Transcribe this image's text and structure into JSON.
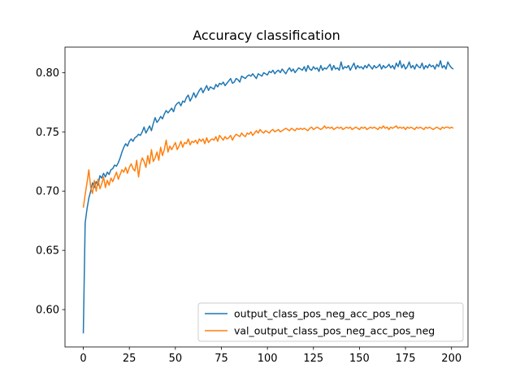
{
  "chart_data": {
    "type": "line",
    "title": "Accuracy classification",
    "xlabel": "",
    "ylabel": "",
    "xlim": [
      -9.95,
      208.95
    ],
    "ylim": [
      0.5685,
      0.8215
    ],
    "xticks": [
      0,
      25,
      50,
      75,
      100,
      125,
      150,
      175,
      200
    ],
    "yticks": [
      0.6,
      0.65,
      0.7,
      0.75,
      0.8
    ],
    "ytick_labels": [
      "0.60",
      "0.65",
      "0.70",
      "0.75",
      "0.80"
    ],
    "grid": false,
    "legend_position": "lower right",
    "series": [
      {
        "name": "output_class_pos_neg_acc_pos_neg",
        "color": "#1f77b4",
        "x_start": 0,
        "x_step": 1,
        "values": [
          0.58,
          0.673,
          0.685,
          0.694,
          0.7,
          0.707,
          0.703,
          0.708,
          0.705,
          0.713,
          0.711,
          0.715,
          0.712,
          0.716,
          0.714,
          0.718,
          0.719,
          0.722,
          0.721,
          0.724,
          0.728,
          0.733,
          0.737,
          0.74,
          0.738,
          0.742,
          0.744,
          0.742,
          0.745,
          0.746,
          0.748,
          0.747,
          0.75,
          0.754,
          0.749,
          0.752,
          0.755,
          0.751,
          0.757,
          0.762,
          0.758,
          0.76,
          0.763,
          0.761,
          0.765,
          0.768,
          0.766,
          0.768,
          0.77,
          0.767,
          0.772,
          0.774,
          0.775,
          0.772,
          0.776,
          0.775,
          0.779,
          0.781,
          0.776,
          0.779,
          0.783,
          0.779,
          0.782,
          0.785,
          0.787,
          0.783,
          0.786,
          0.789,
          0.785,
          0.788,
          0.787,
          0.786,
          0.79,
          0.788,
          0.791,
          0.79,
          0.792,
          0.789,
          0.791,
          0.793,
          0.795,
          0.791,
          0.792,
          0.795,
          0.794,
          0.792,
          0.797,
          0.796,
          0.795,
          0.797,
          0.798,
          0.797,
          0.799,
          0.797,
          0.795,
          0.799,
          0.798,
          0.797,
          0.8,
          0.799,
          0.798,
          0.801,
          0.8,
          0.802,
          0.799,
          0.801,
          0.802,
          0.8,
          0.803,
          0.801,
          0.799,
          0.802,
          0.804,
          0.801,
          0.803,
          0.8,
          0.802,
          0.804,
          0.803,
          0.802,
          0.805,
          0.801,
          0.806,
          0.803,
          0.802,
          0.805,
          0.803,
          0.804,
          0.801,
          0.806,
          0.802,
          0.804,
          0.803,
          0.805,
          0.807,
          0.802,
          0.806,
          0.803,
          0.804,
          0.802,
          0.809,
          0.803,
          0.805,
          0.804,
          0.806,
          0.802,
          0.805,
          0.808,
          0.803,
          0.806,
          0.804,
          0.805,
          0.803,
          0.806,
          0.804,
          0.807,
          0.805,
          0.803,
          0.806,
          0.804,
          0.805,
          0.807,
          0.803,
          0.806,
          0.804,
          0.805,
          0.807,
          0.804,
          0.806,
          0.803,
          0.808,
          0.805,
          0.81,
          0.804,
          0.807,
          0.803,
          0.805,
          0.809,
          0.804,
          0.806,
          0.803,
          0.807,
          0.805,
          0.804,
          0.808,
          0.803,
          0.806,
          0.804,
          0.807,
          0.805,
          0.806,
          0.803,
          0.807,
          0.805,
          0.81,
          0.804,
          0.806,
          0.803,
          0.809,
          0.806,
          0.804,
          0.803
        ],
        "note": ""
      },
      {
        "name": "val_output_class_pos_neg_acc_pos_neg",
        "color": "#ff7f0e",
        "x_start": 0,
        "x_step": 1,
        "values": [
          0.686,
          0.697,
          0.707,
          0.718,
          0.703,
          0.698,
          0.709,
          0.7,
          0.71,
          0.702,
          0.706,
          0.712,
          0.703,
          0.709,
          0.705,
          0.711,
          0.708,
          0.712,
          0.716,
          0.71,
          0.714,
          0.718,
          0.716,
          0.72,
          0.715,
          0.72,
          0.723,
          0.719,
          0.717,
          0.726,
          0.712,
          0.723,
          0.728,
          0.725,
          0.72,
          0.73,
          0.723,
          0.735,
          0.725,
          0.728,
          0.733,
          0.726,
          0.737,
          0.73,
          0.735,
          0.743,
          0.733,
          0.738,
          0.735,
          0.738,
          0.741,
          0.735,
          0.738,
          0.742,
          0.737,
          0.741,
          0.74,
          0.744,
          0.739,
          0.742,
          0.741,
          0.743,
          0.74,
          0.744,
          0.742,
          0.744,
          0.74,
          0.745,
          0.741,
          0.743,
          0.744,
          0.743,
          0.746,
          0.742,
          0.747,
          0.745,
          0.743,
          0.746,
          0.744,
          0.745,
          0.747,
          0.743,
          0.746,
          0.748,
          0.747,
          0.746,
          0.749,
          0.747,
          0.746,
          0.749,
          0.748,
          0.75,
          0.747,
          0.749,
          0.751,
          0.749,
          0.752,
          0.75,
          0.749,
          0.751,
          0.75,
          0.749,
          0.751,
          0.752,
          0.75,
          0.751,
          0.752,
          0.75,
          0.751,
          0.752,
          0.753,
          0.752,
          0.751,
          0.753,
          0.752,
          0.751,
          0.753,
          0.752,
          0.753,
          0.752,
          0.753,
          0.752,
          0.751,
          0.753,
          0.754,
          0.752,
          0.753,
          0.754,
          0.753,
          0.752,
          0.753,
          0.755,
          0.753,
          0.754,
          0.753,
          0.754,
          0.752,
          0.753,
          0.754,
          0.753,
          0.754,
          0.752,
          0.753,
          0.754,
          0.753,
          0.754,
          0.752,
          0.753,
          0.754,
          0.753,
          0.752,
          0.754,
          0.753,
          0.754,
          0.752,
          0.753,
          0.754,
          0.753,
          0.754,
          0.753,
          0.752,
          0.754,
          0.753,
          0.755,
          0.753,
          0.754,
          0.752,
          0.754,
          0.753,
          0.754,
          0.755,
          0.753,
          0.754,
          0.753,
          0.754,
          0.752,
          0.754,
          0.753,
          0.754,
          0.753,
          0.752,
          0.754,
          0.753,
          0.754,
          0.753,
          0.752,
          0.754,
          0.753,
          0.754,
          0.753,
          0.752,
          0.753,
          0.754,
          0.753,
          0.752,
          0.754,
          0.753,
          0.754,
          0.754,
          0.753,
          0.754,
          0.753
        ],
        "note": ""
      }
    ]
  }
}
